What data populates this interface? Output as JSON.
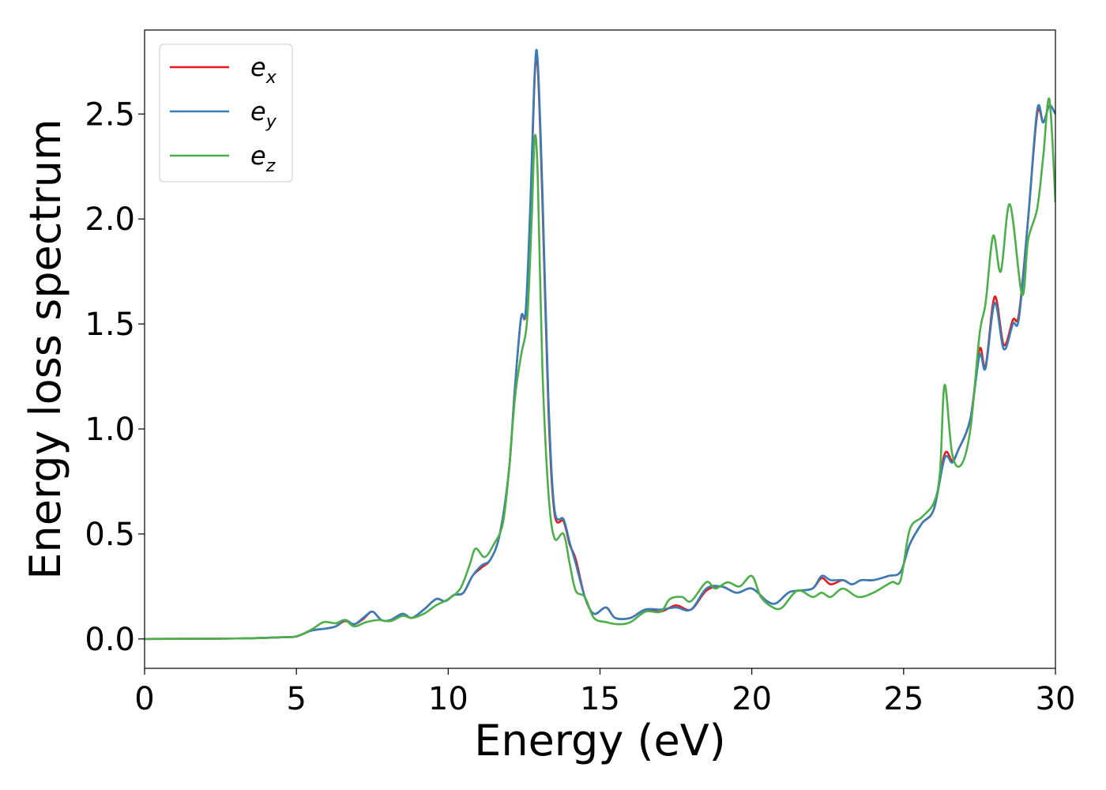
{
  "chart_data": {
    "type": "line",
    "xlabel": "Energy (eV)",
    "ylabel": "Energy loss spectrum",
    "xlim": [
      0,
      30
    ],
    "ylim": [
      -0.14,
      2.9
    ],
    "xticks": [
      0,
      5,
      10,
      15,
      20,
      25,
      30
    ],
    "xtick_labels": [
      "0",
      "5",
      "10",
      "15",
      "20",
      "25",
      "30"
    ],
    "yticks": [
      0.0,
      0.5,
      1.0,
      1.5,
      2.0,
      2.5
    ],
    "ytick_labels": [
      "0.0",
      "0.5",
      "1.0",
      "1.5",
      "2.0",
      "2.5"
    ],
    "grid": false,
    "legend_position": "top-left",
    "series": [
      {
        "name": "e_x",
        "label_base": "e",
        "label_sub": "x",
        "color": "#e41a1c",
        "points": [
          [
            0,
            0
          ],
          [
            3,
            0.002
          ],
          [
            4.5,
            0.008
          ],
          [
            5,
            0.012
          ],
          [
            5.5,
            0.04
          ],
          [
            6,
            0.05
          ],
          [
            6.3,
            0.06
          ],
          [
            6.6,
            0.085
          ],
          [
            6.9,
            0.07
          ],
          [
            7.2,
            0.095
          ],
          [
            7.5,
            0.13
          ],
          [
            7.8,
            0.09
          ],
          [
            8.1,
            0.09
          ],
          [
            8.5,
            0.12
          ],
          [
            8.8,
            0.1
          ],
          [
            9.2,
            0.14
          ],
          [
            9.6,
            0.19
          ],
          [
            9.9,
            0.18
          ],
          [
            10.2,
            0.21
          ],
          [
            10.5,
            0.22
          ],
          [
            10.8,
            0.3
          ],
          [
            11.1,
            0.34
          ],
          [
            11.4,
            0.38
          ],
          [
            11.7,
            0.5
          ],
          [
            12.0,
            0.8
          ],
          [
            12.2,
            1.2
          ],
          [
            12.4,
            1.53
          ],
          [
            12.55,
            1.55
          ],
          [
            12.7,
            2.0
          ],
          [
            12.85,
            2.68
          ],
          [
            12.95,
            2.72
          ],
          [
            13.1,
            2.1
          ],
          [
            13.3,
            1.1
          ],
          [
            13.5,
            0.6
          ],
          [
            13.8,
            0.56
          ],
          [
            14.0,
            0.45
          ],
          [
            14.2,
            0.38
          ],
          [
            14.5,
            0.2
          ],
          [
            14.8,
            0.12
          ],
          [
            15.2,
            0.15
          ],
          [
            15.5,
            0.1
          ],
          [
            16.0,
            0.1
          ],
          [
            16.5,
            0.14
          ],
          [
            17.0,
            0.13
          ],
          [
            17.5,
            0.16
          ],
          [
            18.0,
            0.14
          ],
          [
            18.5,
            0.23
          ],
          [
            19.0,
            0.25
          ],
          [
            19.5,
            0.22
          ],
          [
            20.0,
            0.24
          ],
          [
            20.5,
            0.18
          ],
          [
            20.8,
            0.17
          ],
          [
            21.2,
            0.22
          ],
          [
            21.5,
            0.23
          ],
          [
            22.0,
            0.24
          ],
          [
            22.3,
            0.29
          ],
          [
            22.6,
            0.26
          ],
          [
            23.0,
            0.28
          ],
          [
            23.3,
            0.26
          ],
          [
            23.6,
            0.28
          ],
          [
            24.0,
            0.28
          ],
          [
            24.5,
            0.3
          ],
          [
            24.9,
            0.32
          ],
          [
            25.2,
            0.45
          ],
          [
            25.6,
            0.55
          ],
          [
            26.0,
            0.62
          ],
          [
            26.35,
            0.88
          ],
          [
            26.6,
            0.85
          ],
          [
            26.8,
            0.9
          ],
          [
            27.2,
            1.05
          ],
          [
            27.5,
            1.38
          ],
          [
            27.7,
            1.3
          ],
          [
            28.0,
            1.63
          ],
          [
            28.3,
            1.4
          ],
          [
            28.6,
            1.52
          ],
          [
            28.8,
            1.55
          ],
          [
            29.1,
            2.0
          ],
          [
            29.4,
            2.5
          ],
          [
            29.6,
            2.46
          ],
          [
            29.8,
            2.54
          ],
          [
            30,
            2.5
          ]
        ]
      },
      {
        "name": "e_y",
        "label_base": "e",
        "label_sub": "y",
        "color": "#377eb8",
        "points": [
          [
            0,
            0
          ],
          [
            3,
            0.002
          ],
          [
            4.5,
            0.008
          ],
          [
            5,
            0.012
          ],
          [
            5.5,
            0.04
          ],
          [
            6,
            0.05
          ],
          [
            6.3,
            0.06
          ],
          [
            6.6,
            0.09
          ],
          [
            6.9,
            0.07
          ],
          [
            7.2,
            0.1
          ],
          [
            7.5,
            0.13
          ],
          [
            7.8,
            0.09
          ],
          [
            8.1,
            0.09
          ],
          [
            8.5,
            0.12
          ],
          [
            8.8,
            0.1
          ],
          [
            9.2,
            0.14
          ],
          [
            9.6,
            0.19
          ],
          [
            9.9,
            0.18
          ],
          [
            10.2,
            0.21
          ],
          [
            10.5,
            0.22
          ],
          [
            10.8,
            0.3
          ],
          [
            11.1,
            0.35
          ],
          [
            11.4,
            0.38
          ],
          [
            11.7,
            0.5
          ],
          [
            12.0,
            0.8
          ],
          [
            12.2,
            1.2
          ],
          [
            12.4,
            1.53
          ],
          [
            12.55,
            1.56
          ],
          [
            12.7,
            2.05
          ],
          [
            12.85,
            2.7
          ],
          [
            12.95,
            2.75
          ],
          [
            13.1,
            2.15
          ],
          [
            13.3,
            1.15
          ],
          [
            13.5,
            0.62
          ],
          [
            13.8,
            0.57
          ],
          [
            14.0,
            0.46
          ],
          [
            14.2,
            0.36
          ],
          [
            14.5,
            0.2
          ],
          [
            14.8,
            0.12
          ],
          [
            15.2,
            0.15
          ],
          [
            15.5,
            0.1
          ],
          [
            16.0,
            0.1
          ],
          [
            16.5,
            0.14
          ],
          [
            17.0,
            0.14
          ],
          [
            17.5,
            0.15
          ],
          [
            18.0,
            0.14
          ],
          [
            18.5,
            0.24
          ],
          [
            19.0,
            0.25
          ],
          [
            19.5,
            0.22
          ],
          [
            20.0,
            0.24
          ],
          [
            20.5,
            0.18
          ],
          [
            20.8,
            0.17
          ],
          [
            21.2,
            0.22
          ],
          [
            21.5,
            0.23
          ],
          [
            22.0,
            0.24
          ],
          [
            22.3,
            0.3
          ],
          [
            22.6,
            0.28
          ],
          [
            23.0,
            0.28
          ],
          [
            23.3,
            0.26
          ],
          [
            23.6,
            0.28
          ],
          [
            24.0,
            0.28
          ],
          [
            24.5,
            0.3
          ],
          [
            24.9,
            0.32
          ],
          [
            25.2,
            0.45
          ],
          [
            25.6,
            0.55
          ],
          [
            26.0,
            0.62
          ],
          [
            26.35,
            0.86
          ],
          [
            26.6,
            0.84
          ],
          [
            26.8,
            0.9
          ],
          [
            27.2,
            1.05
          ],
          [
            27.5,
            1.35
          ],
          [
            27.7,
            1.29
          ],
          [
            28.0,
            1.6
          ],
          [
            28.3,
            1.38
          ],
          [
            28.6,
            1.5
          ],
          [
            28.8,
            1.53
          ],
          [
            29.1,
            2.0
          ],
          [
            29.4,
            2.52
          ],
          [
            29.6,
            2.46
          ],
          [
            29.8,
            2.54
          ],
          [
            30,
            2.5
          ]
        ]
      },
      {
        "name": "e_z",
        "label_base": "e",
        "label_sub": "z",
        "color": "#4daf4a",
        "points": [
          [
            0,
            0
          ],
          [
            3,
            0.002
          ],
          [
            4.5,
            0.008
          ],
          [
            5,
            0.012
          ],
          [
            5.5,
            0.045
          ],
          [
            5.9,
            0.08
          ],
          [
            6.3,
            0.075
          ],
          [
            6.6,
            0.09
          ],
          [
            6.9,
            0.06
          ],
          [
            7.3,
            0.08
          ],
          [
            7.7,
            0.09
          ],
          [
            8.1,
            0.085
          ],
          [
            8.5,
            0.11
          ],
          [
            8.8,
            0.1
          ],
          [
            9.2,
            0.12
          ],
          [
            9.6,
            0.16
          ],
          [
            10.0,
            0.19
          ],
          [
            10.4,
            0.24
          ],
          [
            10.7,
            0.35
          ],
          [
            10.9,
            0.43
          ],
          [
            11.2,
            0.39
          ],
          [
            11.5,
            0.45
          ],
          [
            11.8,
            0.55
          ],
          [
            12.0,
            0.8
          ],
          [
            12.2,
            1.15
          ],
          [
            12.4,
            1.35
          ],
          [
            12.6,
            1.52
          ],
          [
            12.75,
            2.0
          ],
          [
            12.85,
            2.39
          ],
          [
            12.95,
            2.2
          ],
          [
            13.1,
            1.3
          ],
          [
            13.3,
            0.7
          ],
          [
            13.5,
            0.48
          ],
          [
            13.8,
            0.5
          ],
          [
            14.0,
            0.36
          ],
          [
            14.2,
            0.23
          ],
          [
            14.5,
            0.2
          ],
          [
            14.8,
            0.1
          ],
          [
            15.2,
            0.08
          ],
          [
            15.6,
            0.07
          ],
          [
            16.0,
            0.08
          ],
          [
            16.5,
            0.13
          ],
          [
            17.0,
            0.13
          ],
          [
            17.3,
            0.19
          ],
          [
            17.7,
            0.2
          ],
          [
            18.0,
            0.18
          ],
          [
            18.5,
            0.27
          ],
          [
            18.8,
            0.24
          ],
          [
            19.2,
            0.27
          ],
          [
            19.6,
            0.25
          ],
          [
            20.0,
            0.3
          ],
          [
            20.3,
            0.2
          ],
          [
            20.7,
            0.15
          ],
          [
            21.0,
            0.15
          ],
          [
            21.5,
            0.23
          ],
          [
            22.0,
            0.2
          ],
          [
            22.3,
            0.22
          ],
          [
            22.6,
            0.2
          ],
          [
            23.0,
            0.24
          ],
          [
            23.5,
            0.2
          ],
          [
            24.0,
            0.22
          ],
          [
            24.6,
            0.27
          ],
          [
            24.9,
            0.28
          ],
          [
            25.2,
            0.52
          ],
          [
            25.6,
            0.58
          ],
          [
            26.0,
            0.65
          ],
          [
            26.2,
            0.8
          ],
          [
            26.35,
            1.21
          ],
          [
            26.6,
            0.88
          ],
          [
            26.9,
            0.83
          ],
          [
            27.2,
            1.0
          ],
          [
            27.5,
            1.45
          ],
          [
            27.7,
            1.6
          ],
          [
            27.95,
            1.92
          ],
          [
            28.2,
            1.75
          ],
          [
            28.5,
            2.07
          ],
          [
            28.9,
            1.64
          ],
          [
            29.1,
            1.9
          ],
          [
            29.4,
            2.05
          ],
          [
            29.6,
            2.3
          ],
          [
            29.8,
            2.57
          ],
          [
            30,
            2.08
          ]
        ]
      }
    ]
  }
}
